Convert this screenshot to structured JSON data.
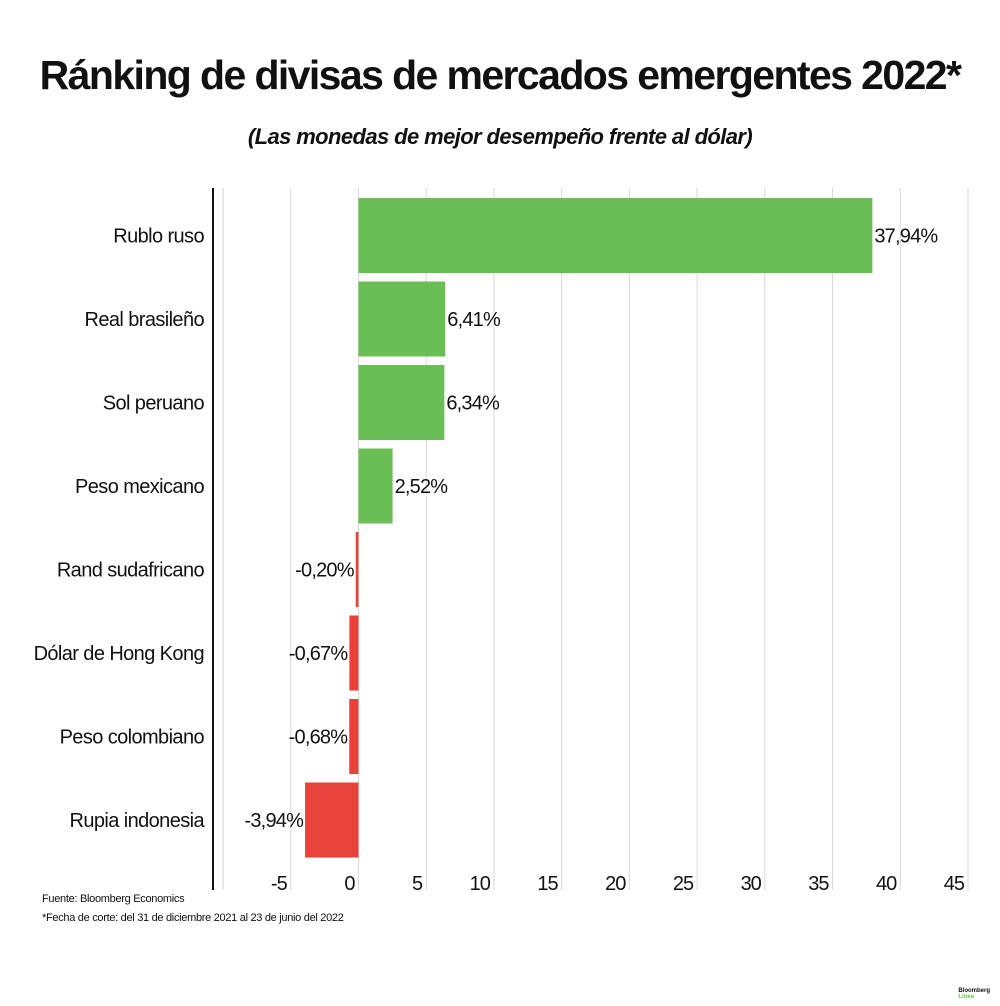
{
  "title": "Ránking de divisas de mercados emergentes 2022*",
  "subtitle": "(Las monedas de mejor desempeño frente al dólar)",
  "chart_data": {
    "type": "bar",
    "orientation": "horizontal",
    "categories": [
      "Rublo ruso",
      "Real brasileño",
      "Sol peruano",
      "Peso mexicano",
      "Rand sudafricano",
      "Dólar de Hong Kong",
      "Peso colombiano",
      "Rupia indonesia"
    ],
    "values": [
      37.94,
      6.41,
      6.34,
      2.52,
      -0.2,
      -0.67,
      -0.68,
      -3.94
    ],
    "data_labels": [
      "37,94%",
      "6,41%",
      "6,34%",
      "2,52%",
      "-0,20%",
      "-0,67%",
      "-0,68%",
      "-3,94%"
    ],
    "xlim": [
      -10,
      45
    ],
    "xticks": [
      -5,
      0,
      5,
      10,
      15,
      20,
      25,
      30,
      35,
      40,
      45
    ],
    "xtick_labels": [
      "-5",
      "0",
      "5",
      "10",
      "15",
      "20",
      "25",
      "30",
      "35",
      "40",
      "45"
    ],
    "grid": true,
    "colors": {
      "positive": "#6abf54",
      "negative": "#e8433a"
    }
  },
  "footnotes": {
    "source": "Fuente: Bloomberg Economics",
    "note": "*Fecha de corte: del 31 de diciembre 2021 al  23 de junio del 2022"
  },
  "logo": {
    "line1": "Bloomberg",
    "line2": "Línea"
  }
}
